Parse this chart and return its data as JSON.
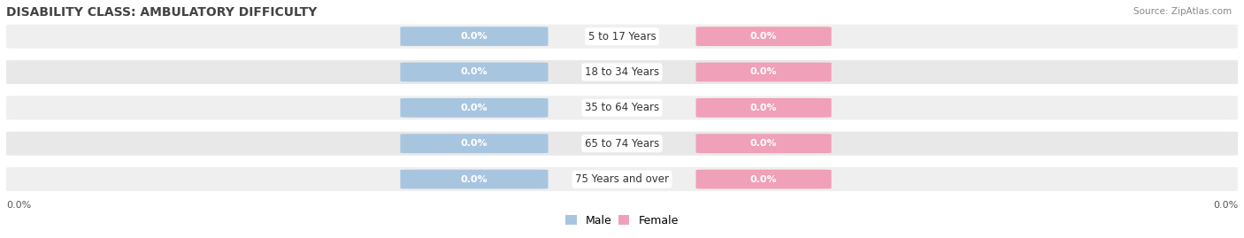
{
  "title": "DISABILITY CLASS: AMBULATORY DIFFICULTY",
  "source_text": "Source: ZipAtlas.com",
  "categories": [
    "5 to 17 Years",
    "18 to 34 Years",
    "35 to 64 Years",
    "65 to 74 Years",
    "75 Years and over"
  ],
  "male_values": [
    0.0,
    0.0,
    0.0,
    0.0,
    0.0
  ],
  "female_values": [
    0.0,
    0.0,
    0.0,
    0.0,
    0.0
  ],
  "left_axis_label": "0.0%",
  "right_axis_label": "0.0%",
  "male_color": "#a8c5e0",
  "female_color": "#f0a0b8",
  "row_bg_even": "#efefef",
  "row_bg_odd": "#e8e8e8",
  "title_fontsize": 10,
  "label_fontsize": 8,
  "category_fontsize": 8.5,
  "legend_fontsize": 9,
  "axis_label_fontsize": 8,
  "background_color": "#ffffff"
}
